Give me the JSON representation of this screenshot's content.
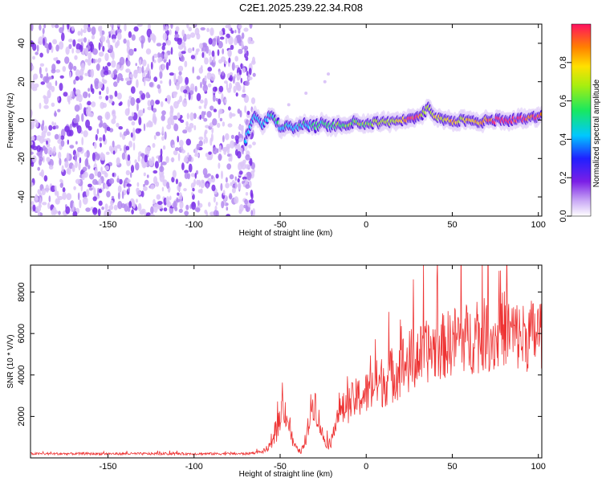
{
  "title": "C2E1.2025.239.22.34.R08",
  "chart_data": [
    {
      "type": "heatmap",
      "xlabel": "Height of straight line (km)",
      "ylabel": "Frequency (Hz)",
      "xlim": [
        -195,
        102
      ],
      "ylim": [
        -50,
        50
      ],
      "xticks": [
        -150,
        -100,
        -50,
        0,
        50,
        100
      ],
      "yticks": [
        -40,
        -20,
        0,
        20,
        40
      ],
      "colorbar": {
        "label": "Normalized spectral amplitude",
        "range": [
          0,
          1
        ],
        "ticks": [
          "0.0",
          "0.2",
          "0.4",
          "0.6",
          "0.8"
        ]
      },
      "noise_region_x": [
        -195,
        -65
      ],
      "ridge": {
        "x": [
          -70,
          -65,
          -60,
          -55,
          -50,
          -45,
          -40,
          -35,
          -30,
          -25,
          -20,
          -15,
          -10,
          -5,
          0,
          5,
          10,
          15,
          20,
          25,
          30,
          33,
          36,
          40,
          45,
          50,
          55,
          60,
          65,
          70,
          75,
          80,
          85,
          90,
          95,
          100,
          102
        ],
        "freq": [
          -10,
          3,
          -2,
          4,
          -4,
          -3,
          -4,
          -2,
          -3,
          -2,
          -3,
          -2,
          -2,
          -1,
          -2,
          -1,
          -1,
          -1,
          0,
          0,
          1,
          4,
          6,
          2,
          1,
          -1,
          0,
          -1,
          -1,
          0,
          0,
          0,
          0,
          1,
          1,
          2,
          2
        ],
        "amplitude": [
          0.3,
          0.3,
          0.3,
          0.35,
          0.3,
          0.3,
          0.3,
          0.35,
          0.35,
          0.4,
          0.4,
          0.45,
          0.5,
          0.5,
          0.5,
          0.55,
          0.55,
          0.55,
          0.65,
          0.85,
          0.8,
          0.6,
          0.5,
          0.6,
          0.6,
          0.7,
          0.65,
          0.7,
          0.7,
          0.75,
          0.85,
          0.9,
          0.85,
          0.85,
          0.8,
          0.8,
          0.75
        ]
      }
    },
    {
      "type": "line",
      "xlabel": "Height of straight line (km)",
      "ylabel": "SNR (10 * V/V)",
      "xlim": [
        -195,
        102
      ],
      "ylim": [
        0,
        9300
      ],
      "xticks": [
        -150,
        -100,
        -50,
        0,
        50,
        100
      ],
      "yticks": [
        2000,
        4000,
        6000,
        8000
      ],
      "series": [
        {
          "color": "#ee3333",
          "x": [
            -195,
            -150,
            -100,
            -70,
            -60,
            -55,
            -52,
            -50,
            -48,
            -46,
            -43,
            -40,
            -38,
            -35,
            -32,
            -30,
            -28,
            -25,
            -22,
            -20,
            -18,
            -15,
            -10,
            -5,
            0,
            5,
            10,
            15,
            20,
            25,
            30,
            35,
            40,
            45,
            50,
            55,
            60,
            65,
            70,
            75,
            80,
            85,
            90,
            95,
            100,
            102
          ],
          "values": [
            200,
            200,
            200,
            200,
            300,
            600,
            1200,
            2000,
            2500,
            2000,
            800,
            400,
            300,
            700,
            2400,
            2800,
            2000,
            1000,
            600,
            800,
            1900,
            2200,
            2600,
            2900,
            3100,
            3500,
            3700,
            4000,
            4400,
            4600,
            4900,
            5100,
            5300,
            5400,
            5600,
            5900,
            5700,
            5800,
            6000,
            5700,
            6300,
            6000,
            5800,
            5900,
            6000,
            6100
          ]
        }
      ]
    }
  ]
}
